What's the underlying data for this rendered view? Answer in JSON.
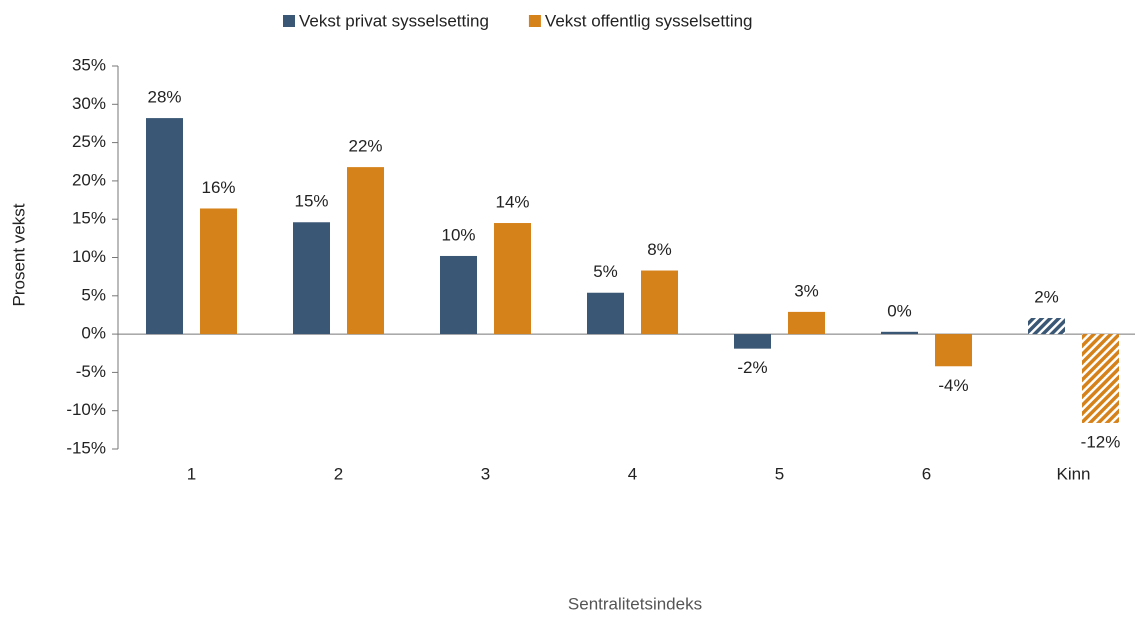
{
  "chart_data": {
    "type": "bar",
    "y_axis_label": "Prosent vekst",
    "x_axis_label": "Sentralitetsindeks",
    "categories": [
      "1",
      "2",
      "3",
      "4",
      "5",
      "6",
      "Kinn"
    ],
    "series": [
      {
        "name": "Vekst privat sysselsetting",
        "color": "#3a5775",
        "values": [
          28.2,
          14.6,
          10.2,
          5.4,
          -1.9,
          0.3,
          2.1
        ],
        "value_labels": [
          "28%",
          "15%",
          "10%",
          "5%",
          "-2%",
          "0%",
          "2%"
        ]
      },
      {
        "name": "Vekst offentlig sysselsetting",
        "color": "#d6821b",
        "values": [
          16.4,
          21.8,
          14.5,
          8.3,
          2.9,
          -4.2,
          -11.6
        ],
        "value_labels": [
          "16%",
          "22%",
          "14%",
          "8%",
          "3%",
          "-4%",
          "-12%"
        ]
      }
    ],
    "hatched_categories": [
      "Kinn"
    ],
    "ylim": [
      -15,
      35
    ],
    "yticks": [
      {
        "value": -15,
        "label": "-15%"
      },
      {
        "value": -10,
        "label": "-10%"
      },
      {
        "value": -5,
        "label": "-5%"
      },
      {
        "value": 0,
        "label": "0%"
      },
      {
        "value": 5,
        "label": "5%"
      },
      {
        "value": 10,
        "label": "10%"
      },
      {
        "value": 15,
        "label": "15%"
      },
      {
        "value": 20,
        "label": "20%"
      },
      {
        "value": 25,
        "label": "25%"
      },
      {
        "value": 30,
        "label": "30%"
      },
      {
        "value": 35,
        "label": "35%"
      }
    ],
    "legend": "top"
  }
}
